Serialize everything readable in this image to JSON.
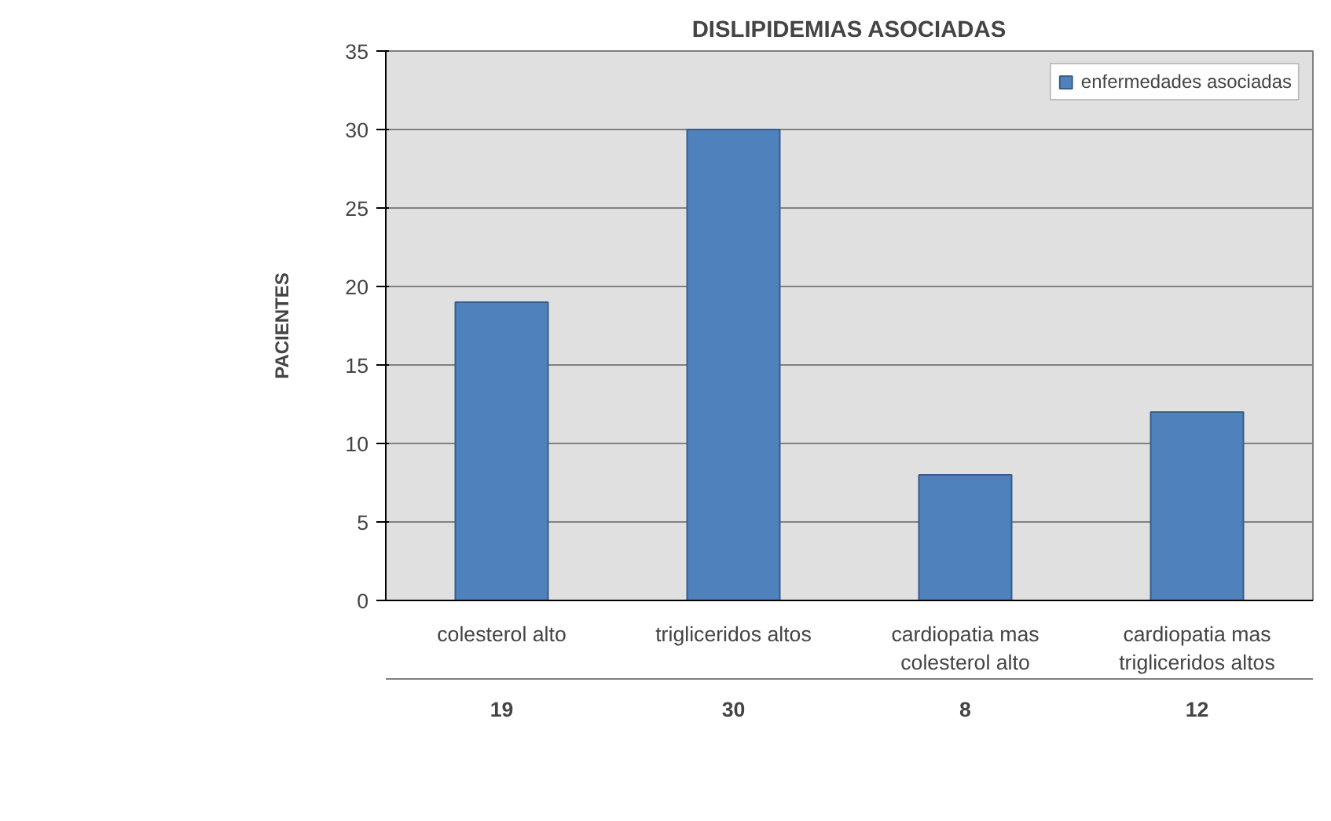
{
  "chart_data": {
    "type": "bar",
    "title": "DISLIPIDEMIAS ASOCIADAS",
    "ylabel": "PACIENTES",
    "categories": [
      "colesterol alto",
      "trigliceridos altos",
      "cardiopatia mas colesterol alto",
      "cardiopatia mas trigliceridos altos"
    ],
    "series": [
      {
        "name": "enfermedades asociadas",
        "color": "#4f81bd",
        "values": [
          19,
          30,
          8,
          12
        ]
      }
    ],
    "ylim": [
      0,
      35
    ],
    "yticks": [
      0,
      5,
      10,
      15,
      20,
      25,
      30,
      35
    ],
    "grid": "y",
    "legend": "top right",
    "data_labels": true
  }
}
